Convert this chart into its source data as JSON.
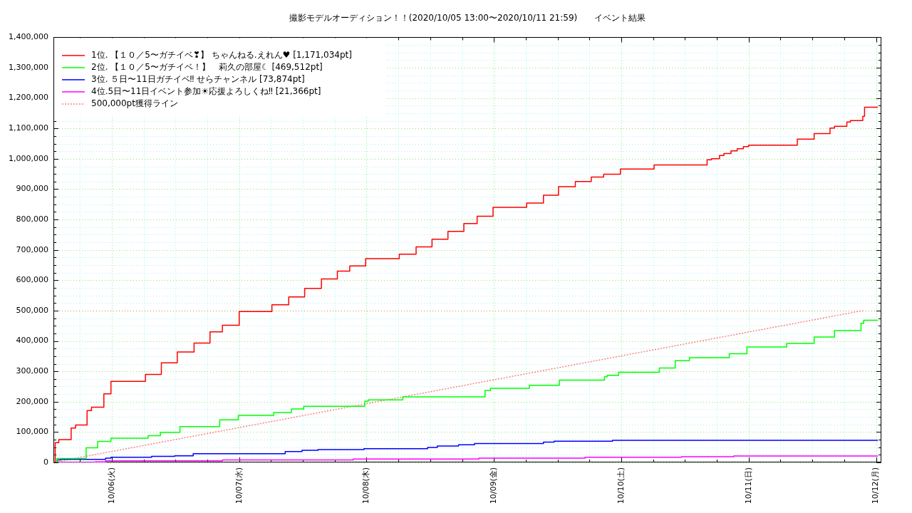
{
  "chart_data": {
    "type": "step",
    "title": "撮影モデルオーディション！！(2020/10/05 13:00〜2020/10/11 21:59)　　イベント結果",
    "xlim": [
      "2020-10-05T13:00",
      "2020-10-12T01:00"
    ],
    "xticks": [
      {
        "value": "2020-10-05T18:00",
        "label": null
      },
      {
        "value": "2020-10-06",
        "label": "10/06(火)"
      },
      {
        "value": "2020-10-06T06:00",
        "label": null
      },
      {
        "value": "2020-10-06T12:00",
        "label": null
      },
      {
        "value": "2020-10-06T18:00",
        "label": null
      },
      {
        "value": "2020-10-07",
        "label": "10/07(水)"
      },
      {
        "value": "2020-10-07T06:00",
        "label": null
      },
      {
        "value": "2020-10-07T12:00",
        "label": null
      },
      {
        "value": "2020-10-07T18:00",
        "label": null
      },
      {
        "value": "2020-10-08",
        "label": "10/08(木)"
      },
      {
        "value": "2020-10-08T06:00",
        "label": null
      },
      {
        "value": "2020-10-08T12:00",
        "label": null
      },
      {
        "value": "2020-10-08T18:00",
        "label": null
      },
      {
        "value": "2020-10-09",
        "label": "10/09(金)"
      },
      {
        "value": "2020-10-09T06:00",
        "label": null
      },
      {
        "value": "2020-10-09T12:00",
        "label": null
      },
      {
        "value": "2020-10-09T18:00",
        "label": null
      },
      {
        "value": "2020-10-10",
        "label": "10/10(土)"
      },
      {
        "value": "2020-10-10T06:00",
        "label": null
      },
      {
        "value": "2020-10-10T12:00",
        "label": null
      },
      {
        "value": "2020-10-10T18:00",
        "label": null
      },
      {
        "value": "2020-10-11",
        "label": "10/11(日)"
      },
      {
        "value": "2020-10-11T06:00",
        "label": null
      },
      {
        "value": "2020-10-11T12:00",
        "label": null
      },
      {
        "value": "2020-10-11T18:00",
        "label": null
      },
      {
        "value": "2020-10-12",
        "label": "10/12(月)"
      }
    ],
    "ylim": [
      0,
      1400000
    ],
    "yticks": [
      0,
      {
        "value": 25000,
        "label": null
      },
      {
        "value": 50000,
        "label": null
      },
      {
        "value": 75000,
        "label": null
      },
      {
        "value": 100000,
        "label": "100,000"
      },
      {
        "value": 125000,
        "label": null
      },
      {
        "value": 150000,
        "label": null
      },
      {
        "value": 175000,
        "label": null
      },
      {
        "value": 200000,
        "label": "200,000"
      },
      {
        "value": 225000,
        "label": null
      },
      {
        "value": 250000,
        "label": null
      },
      {
        "value": 275000,
        "label": null
      },
      {
        "value": 300000,
        "label": "300,000"
      },
      {
        "value": 325000,
        "label": null
      },
      {
        "value": 350000,
        "label": null
      },
      {
        "value": 375000,
        "label": null
      },
      {
        "value": 400000,
        "label": "400,000"
      },
      {
        "value": 425000,
        "label": null
      },
      {
        "value": 450000,
        "label": null
      },
      {
        "value": 475000,
        "label": null
      },
      {
        "value": 500000,
        "label": "500,000"
      },
      {
        "value": 525000,
        "label": null
      },
      {
        "value": 550000,
        "label": null
      },
      {
        "value": 575000,
        "label": null
      },
      {
        "value": 600000,
        "label": "600,000"
      },
      {
        "value": 625000,
        "label": null
      },
      {
        "value": 650000,
        "label": null
      },
      {
        "value": 675000,
        "label": null
      },
      {
        "value": 700000,
        "label": "700,000"
      },
      {
        "value": 725000,
        "label": null
      },
      {
        "value": 750000,
        "label": null
      },
      {
        "value": 775000,
        "label": null
      },
      {
        "value": 800000,
        "label": "800,000"
      },
      {
        "value": 825000,
        "label": null
      },
      {
        "value": 850000,
        "label": null
      },
      {
        "value": 875000,
        "label": null
      },
      {
        "value": 900000,
        "label": "900,000"
      },
      {
        "value": 925000,
        "label": null
      },
      {
        "value": 950000,
        "label": null
      },
      {
        "value": 975000,
        "label": null
      },
      {
        "value": 1000000,
        "label": "1,000,000"
      },
      {
        "value": 1025000,
        "label": null
      },
      {
        "value": 1050000,
        "label": null
      },
      {
        "value": 1075000,
        "label": null
      },
      {
        "value": 1100000,
        "label": "1,100,000"
      },
      {
        "value": 1125000,
        "label": null
      },
      {
        "value": 1150000,
        "label": null
      },
      {
        "value": 1175000,
        "label": null
      },
      {
        "value": 1200000,
        "label": "1,200,000"
      },
      {
        "value": 1225000,
        "label": null
      },
      {
        "value": 1250000,
        "label": null
      },
      {
        "value": 1275000,
        "label": null
      },
      {
        "value": 1300000,
        "label": "1,300,000"
      },
      {
        "value": 1325000,
        "label": null
      },
      {
        "value": 1350000,
        "label": null
      },
      {
        "value": 1375000,
        "label": null
      },
      {
        "value": 1400000,
        "label": "1,400,000"
      }
    ],
    "grid": true,
    "legend": "top left",
    "ref_lines": [
      {
        "axis": "y",
        "value": 500000,
        "color": "#a0a050",
        "line_style": "dotted"
      }
    ],
    "series": [
      {
        "name": "1位. 【１０／5〜ガチイベ❣】 ちゃんねる.えれん♥ [1,171,034pt]",
        "color": "#ff0000",
        "x": [
          "2020-10-05T13:00",
          "2020-10-05T13:20",
          "2020-10-05T14:00",
          "2020-10-05T16:20",
          "2020-10-05T17:10",
          "2020-10-05T19:20",
          "2020-10-05T20:10",
          "2020-10-05T22:30",
          "2020-10-05T23:50",
          "2020-10-06T06:20",
          "2020-10-06T09:20",
          "2020-10-06T12:20",
          "2020-10-06T15:30",
          "2020-10-06T18:30",
          "2020-10-06T20:50",
          "2020-10-07T00:00",
          "2020-10-07T06:10",
          "2020-10-07T09:20",
          "2020-10-07T12:20",
          "2020-10-07T15:30",
          "2020-10-07T18:30",
          "2020-10-07T20:50",
          "2020-10-07T23:50",
          "2020-10-08T06:10",
          "2020-10-08T09:20",
          "2020-10-08T12:20",
          "2020-10-08T15:20",
          "2020-10-08T18:20",
          "2020-10-08T20:50",
          "2020-10-08T23:50",
          "2020-10-09T06:10",
          "2020-10-09T09:20",
          "2020-10-09T12:10",
          "2020-10-09T15:20",
          "2020-10-09T18:20",
          "2020-10-09T20:40",
          "2020-10-09T23:50",
          "2020-10-10T06:10",
          "2020-10-10T16:10",
          "2020-10-10T17:00",
          "2020-10-10T18:30",
          "2020-10-10T19:20",
          "2020-10-10T20:40",
          "2020-10-10T21:50",
          "2020-10-10T23:00",
          "2020-10-11T00:00",
          "2020-10-11T09:10",
          "2020-10-11T12:20",
          "2020-10-11T15:20",
          "2020-10-11T16:10",
          "2020-10-11T18:30",
          "2020-10-11T19:10",
          "2020-10-11T21:30",
          "2020-10-11T21:50",
          "2020-10-12T00:20"
        ],
        "values": [
          0,
          65000,
          75000,
          113000,
          123000,
          171000,
          182000,
          226000,
          267000,
          290000,
          328000,
          364000,
          393000,
          430000,
          452000,
          497000,
          519000,
          545000,
          573000,
          604000,
          630000,
          647000,
          671000,
          686000,
          710000,
          735000,
          761000,
          787000,
          811000,
          840000,
          854000,
          880000,
          908000,
          925000,
          940000,
          949000,
          966000,
          980000,
          997000,
          1000000,
          1011000,
          1017000,
          1026000,
          1033000,
          1040000,
          1045000,
          1065000,
          1083000,
          1101000,
          1107000,
          1121000,
          1126000,
          1140000,
          1170000,
          1170000
        ]
      },
      {
        "name": "2位. 【１０／5〜ガチイベ！】　莉久の部屋☾ [469,512pt]",
        "color": "#00ff00",
        "x": [
          "2020-10-05T13:00",
          "2020-10-05T13:40",
          "2020-10-05T19:10",
          "2020-10-05T21:20",
          "2020-10-05T23:50",
          "2020-10-06T06:50",
          "2020-10-06T09:10",
          "2020-10-06T12:50",
          "2020-10-06T20:20",
          "2020-10-06T23:50",
          "2020-10-07T06:30",
          "2020-10-07T09:50",
          "2020-10-07T12:10",
          "2020-10-07T23:40",
          "2020-10-08T00:20",
          "2020-10-08T06:50",
          "2020-10-08T22:20",
          "2020-10-08T23:20",
          "2020-10-09T06:40",
          "2020-10-09T12:20",
          "2020-10-09T20:50",
          "2020-10-09T21:20",
          "2020-10-09T23:30",
          "2020-10-10T07:10",
          "2020-10-10T10:10",
          "2020-10-10T12:50",
          "2020-10-10T20:20",
          "2020-10-10T23:40",
          "2020-10-11T07:10",
          "2020-10-11T12:20",
          "2020-10-11T16:10",
          "2020-10-11T21:10",
          "2020-10-11T21:40",
          "2020-10-12T00:20"
        ],
        "values": [
          0,
          13000,
          48000,
          69000,
          80000,
          88000,
          99000,
          118000,
          140000,
          155000,
          164000,
          176000,
          185000,
          202000,
          206000,
          216000,
          237000,
          244000,
          254000,
          271000,
          282000,
          287000,
          297000,
          311000,
          335000,
          345000,
          358000,
          380000,
          392000,
          413000,
          434000,
          458000,
          468000,
          468000
        ]
      },
      {
        "name": "3位. ５日〜11日ガチイベ‼ せらチャンネル [73,874pt]",
        "color": "#0000ff",
        "x": [
          "2020-10-05T13:00",
          "2020-10-05T13:40",
          "2020-10-05T14:20",
          "2020-10-05T22:50",
          "2020-10-05T23:50",
          "2020-10-06T07:30",
          "2020-10-06T11:50",
          "2020-10-06T15:20",
          "2020-10-07T08:40",
          "2020-10-07T11:50",
          "2020-10-07T14:50",
          "2020-10-07T23:30",
          "2020-10-08T11:30",
          "2020-10-08T13:20",
          "2020-10-08T17:20",
          "2020-10-08T20:20",
          "2020-10-09T09:20",
          "2020-10-09T11:20",
          "2020-10-09T22:20",
          "2020-10-12T00:20"
        ],
        "values": [
          0,
          8000,
          10000,
          14000,
          17000,
          20000,
          22000,
          29000,
          36000,
          40000,
          42000,
          45000,
          49000,
          54000,
          58000,
          62000,
          67000,
          70000,
          73000,
          73000
        ]
      },
      {
        "name": "4位.5日〜11日イベント参加☀応援よろしくね‼ [21,366pt]",
        "color": "#ff00ff",
        "x": [
          "2020-10-05T13:00",
          "2020-10-05T20:50",
          "2020-10-05T22:50",
          "2020-10-06T20:50",
          "2020-10-07T21:30",
          "2020-10-08T21:10",
          "2020-10-09T17:10",
          "2020-10-10T11:20",
          "2020-10-10T21:10",
          "2020-10-12T00:20"
        ],
        "values": [
          0,
          2000,
          5000,
          8000,
          11000,
          14000,
          17000,
          19000,
          21000,
          21000
        ]
      },
      {
        "name": "500,000pt獲得ライン",
        "type": "line",
        "color": "#ff8080",
        "line_style": "dotted",
        "x": [
          "2020-10-05T13:00",
          "2020-10-11T21:30"
        ],
        "values": [
          0,
          500000
        ]
      }
    ]
  }
}
